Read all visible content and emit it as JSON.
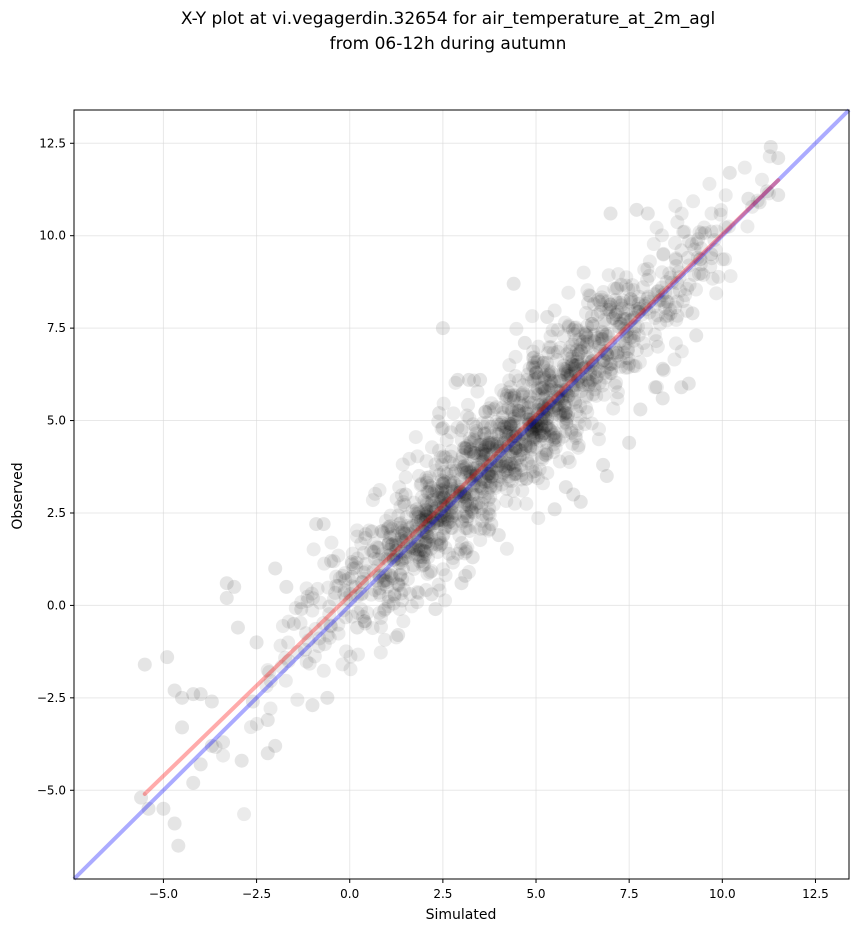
{
  "chart_data": {
    "type": "scatter",
    "title_line1": "X-Y plot at vi.vegagerdin.32654 for air_temperature_at_2m_agl",
    "title_line2": "from 06-12h during autumn",
    "xlabel": "Simulated",
    "ylabel": "Observed",
    "xlim": [
      -7.4,
      13.4
    ],
    "ylim": [
      -7.4,
      13.4
    ],
    "xticks": [
      -5.0,
      -2.5,
      0.0,
      2.5,
      5.0,
      7.5,
      10.0,
      12.5
    ],
    "yticks": [
      -5.0,
      -2.5,
      0.0,
      2.5,
      5.0,
      7.5,
      10.0,
      12.5
    ],
    "xtick_labels": [
      "−5.0",
      "−2.5",
      "0.0",
      "2.5",
      "5.0",
      "7.5",
      "10.0",
      "12.5"
    ],
    "ytick_labels": [
      "−5.0",
      "−2.5",
      "0.0",
      "2.5",
      "5.0",
      "7.5",
      "10.0",
      "12.5"
    ],
    "grid": true,
    "colors": {
      "points": "#000000",
      "fit_line": "#ff0000",
      "identity_line": "#0000ff"
    },
    "identity_line": {
      "x": [
        -7.4,
        13.4
      ],
      "y": [
        -7.4,
        13.4
      ]
    },
    "fit_line": {
      "x": [
        -5.5,
        11.5
      ],
      "y": [
        -5.1,
        11.5
      ]
    },
    "points": [
      [
        -5.5,
        -1.6
      ],
      [
        -4.9,
        -1.4
      ],
      [
        -4.7,
        -2.3
      ],
      [
        -4.5,
        -2.5
      ],
      [
        -4.2,
        -2.4
      ],
      [
        -4.0,
        -2.4
      ],
      [
        -3.7,
        -2.6
      ],
      [
        -3.4,
        -3.7
      ],
      [
        -3.3,
        0.6
      ],
      [
        -3.1,
        0.5
      ],
      [
        -3.3,
        0.2
      ],
      [
        -3.0,
        -0.6
      ],
      [
        -2.9,
        -4.2
      ],
      [
        -2.6,
        -2.6
      ],
      [
        -2.5,
        -1.0
      ],
      [
        -2.2,
        -3.1
      ],
      [
        -2.2,
        -4.0
      ],
      [
        -2.0,
        -3.8
      ],
      [
        -2.0,
        1.0
      ],
      [
        -1.7,
        0.5
      ],
      [
        -1.5,
        -0.5
      ],
      [
        -1.2,
        -1.2
      ],
      [
        -1.0,
        -2.7
      ],
      [
        -0.9,
        2.2
      ],
      [
        -0.7,
        2.2
      ],
      [
        -0.6,
        -2.5
      ],
      [
        -0.5,
        1.2
      ],
      [
        -5.4,
        -5.5
      ],
      [
        -5.6,
        -5.2
      ],
      [
        -5.0,
        -5.5
      ],
      [
        -4.7,
        -5.9
      ],
      [
        -4.6,
        -6.5
      ],
      [
        -4.2,
        -4.8
      ],
      [
        -4.5,
        -3.3
      ],
      [
        -4.0,
        -4.3
      ],
      [
        -3.7,
        -3.8
      ],
      [
        -1.3,
        -0.1
      ],
      [
        0.2,
        -0.6
      ],
      [
        0.1,
        1.0
      ],
      [
        0.6,
        2.0
      ],
      [
        0.8,
        0.8
      ],
      [
        1.2,
        0.3
      ],
      [
        1.3,
        -0.8
      ],
      [
        1.5,
        3.0
      ],
      [
        1.8,
        2.6
      ],
      [
        2.0,
        1.1
      ],
      [
        2.2,
        0.3
      ],
      [
        2.3,
        -0.1
      ],
      [
        2.5,
        3.3
      ],
      [
        2.5,
        7.5
      ],
      [
        2.4,
        5.2
      ],
      [
        2.5,
        4.8
      ],
      [
        2.9,
        6.1
      ],
      [
        3.2,
        6.1
      ],
      [
        3.5,
        6.1
      ],
      [
        3.3,
        1.3
      ],
      [
        3.1,
        0.8
      ],
      [
        3.0,
        0.6
      ],
      [
        3.8,
        2.2
      ],
      [
        4.0,
        1.9
      ],
      [
        4.4,
        8.7
      ],
      [
        4.7,
        7.1
      ],
      [
        5.3,
        7.8
      ],
      [
        5.5,
        2.6
      ],
      [
        5.8,
        3.2
      ],
      [
        6.0,
        3.0
      ],
      [
        6.2,
        2.8
      ],
      [
        6.5,
        6.6
      ],
      [
        6.8,
        3.8
      ],
      [
        6.9,
        3.5
      ],
      [
        7.0,
        10.6
      ],
      [
        7.5,
        4.4
      ],
      [
        7.7,
        10.7
      ],
      [
        7.8,
        5.3
      ],
      [
        8.0,
        10.6
      ],
      [
        8.2,
        5.9
      ],
      [
        8.4,
        5.6
      ],
      [
        8.4,
        6.4
      ],
      [
        8.9,
        5.9
      ],
      [
        9.1,
        6.0
      ],
      [
        9.2,
        7.9
      ],
      [
        9.3,
        7.3
      ],
      [
        9.7,
        9.5
      ],
      [
        10.2,
        11.7
      ],
      [
        10.7,
        11.0
      ],
      [
        11.0,
        10.9
      ],
      [
        11.2,
        11.2
      ],
      [
        11.5,
        11.1
      ],
      [
        11.3,
        12.4
      ],
      [
        11.5,
        12.1
      ]
    ]
  }
}
